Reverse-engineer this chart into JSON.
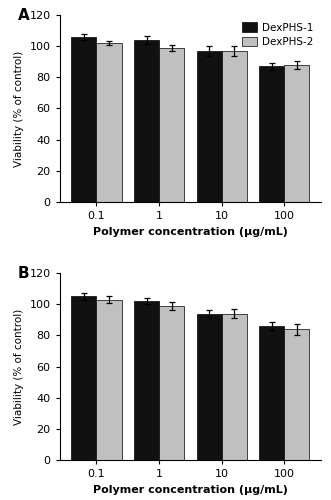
{
  "panel_A": {
    "label": "A",
    "categories": [
      "0.1",
      "1",
      "10",
      "100"
    ],
    "dexphs1_values": [
      106,
      104,
      97,
      87
    ],
    "dexphs1_errors": [
      2.0,
      2.5,
      3.0,
      2.5
    ],
    "dexphs2_values": [
      102,
      99,
      97,
      88
    ],
    "dexphs2_errors": [
      1.5,
      2.0,
      3.0,
      2.5
    ]
  },
  "panel_B": {
    "label": "B",
    "categories": [
      "0.1",
      "1",
      "10",
      "100"
    ],
    "dexphs1_values": [
      105,
      102,
      94,
      86
    ],
    "dexphs1_errors": [
      2.5,
      2.0,
      2.5,
      2.5
    ],
    "dexphs2_values": [
      103,
      99,
      94,
      84
    ],
    "dexphs2_errors": [
      2.5,
      2.5,
      3.0,
      3.5
    ]
  },
  "color_dexphs1": "#111111",
  "color_dexphs2": "#c0c0c0",
  "ylabel": "Viability (% of control)",
  "xlabel": "Polymer concentration (μg/mL)",
  "ylim": [
    0,
    120
  ],
  "yticks": [
    0,
    20,
    40,
    60,
    80,
    100,
    120
  ],
  "legend_labels": [
    "DexPHS-1",
    "DexPHS-2"
  ],
  "bar_width": 0.4,
  "capsize": 2,
  "edge_color": "#000000"
}
